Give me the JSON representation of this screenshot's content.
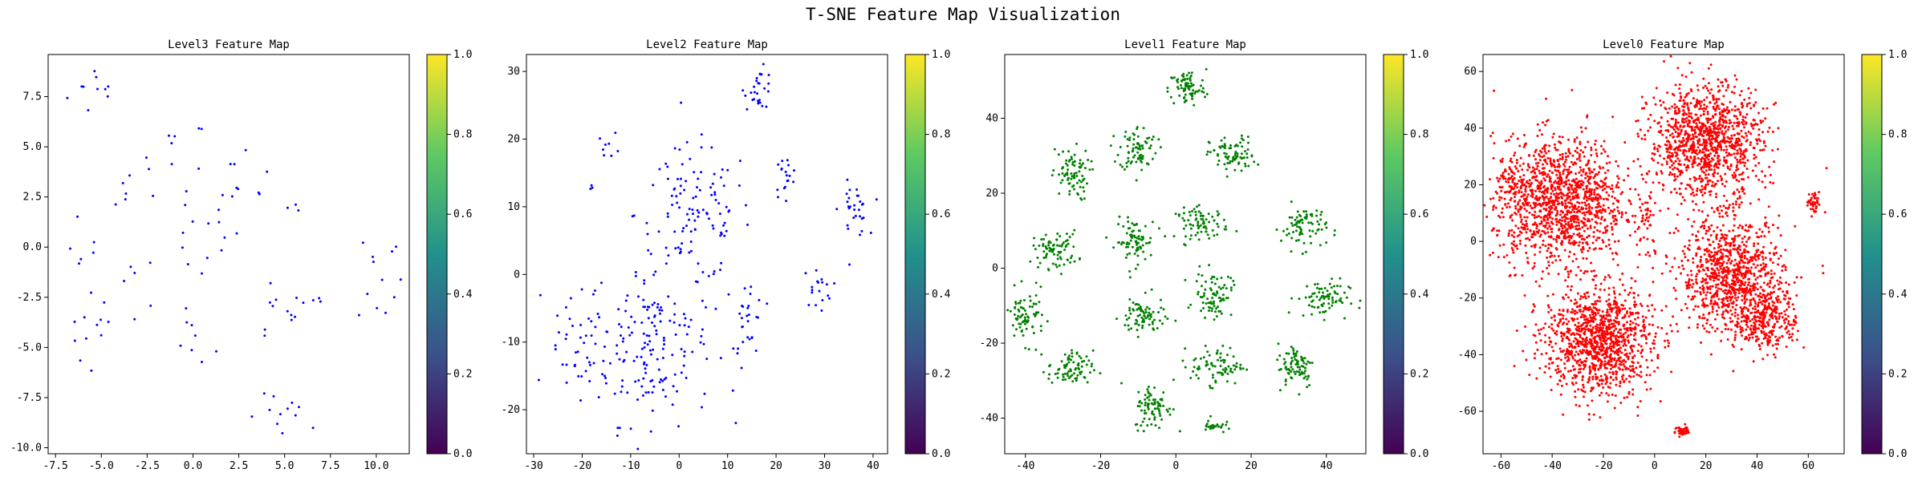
{
  "figure": {
    "title": "T-SNE Feature Map Visualization"
  },
  "colorbar": {
    "ticks": [
      "0.0",
      "0.2",
      "0.4",
      "0.6",
      "0.8",
      "1.0"
    ],
    "range": [
      0,
      1
    ],
    "colormap": [
      "#440154",
      "#3b528b",
      "#21918c",
      "#5ec962",
      "#fde725"
    ]
  },
  "chart_data": [
    {
      "type": "scatter",
      "title": "Level3 Feature Map",
      "color": "#0000ff",
      "xlim": [
        -7.9,
        11.8
      ],
      "ylim": [
        -10.3,
        9.6
      ],
      "xticks": [
        -7.5,
        -5.0,
        -2.5,
        0.0,
        2.5,
        5.0,
        7.5,
        10.0
      ],
      "xtick_labels": [
        "-7.5",
        "-5.0",
        "-2.5",
        "0.0",
        "2.5",
        "5.0",
        "7.5",
        "10.0"
      ],
      "yticks": [
        -10.0,
        -7.5,
        -5.0,
        -2.5,
        0.0,
        2.5,
        5.0,
        7.5
      ],
      "ytick_labels": [
        "-10.0",
        "-7.5",
        "-5.0",
        "-2.5",
        "0.0",
        "2.5",
        "5.0",
        "7.5"
      ],
      "clusters": [
        {
          "cx": -5.0,
          "cy": 7.8,
          "sx": 0.9,
          "sy": 0.7,
          "n": 10
        },
        {
          "cx": -4.2,
          "cy": 2.8,
          "sx": 0.6,
          "sy": 0.6,
          "n": 5
        },
        {
          "cx": -3.0,
          "cy": -1.5,
          "sx": 0.6,
          "sy": 0.8,
          "n": 6
        },
        {
          "cx": -5.3,
          "cy": -4.3,
          "sx": 0.7,
          "sy": 1.0,
          "n": 12
        },
        {
          "cx": -5.7,
          "cy": 0.0,
          "sx": 0.5,
          "sy": 1.0,
          "n": 6
        },
        {
          "cx": -1.0,
          "cy": 4.6,
          "sx": 0.9,
          "sy": 0.9,
          "n": 10
        },
        {
          "cx": 0.5,
          "cy": 0.8,
          "sx": 1.3,
          "sy": 1.4,
          "n": 16
        },
        {
          "cx": 2.8,
          "cy": 3.5,
          "sx": 0.7,
          "sy": 0.8,
          "n": 7
        },
        {
          "cx": 0.0,
          "cy": -4.8,
          "sx": 0.6,
          "sy": 0.7,
          "n": 8
        },
        {
          "cx": 4.3,
          "cy": -3.3,
          "sx": 0.9,
          "sy": 0.9,
          "n": 10
        },
        {
          "cx": 5.3,
          "cy": -8.6,
          "sx": 1.2,
          "sy": 0.6,
          "n": 12
        },
        {
          "cx": 10.2,
          "cy": -1.3,
          "sx": 0.6,
          "sy": 1.4,
          "n": 12
        },
        {
          "cx": 6.5,
          "cy": -2.5,
          "sx": 0.6,
          "sy": 0.7,
          "n": 5
        },
        {
          "cx": 5.0,
          "cy": 2.0,
          "sx": 0.6,
          "sy": 0.6,
          "n": 4
        }
      ]
    },
    {
      "type": "scatter",
      "title": "Level2 Feature Map",
      "color": "#0000ff",
      "xlim": [
        -31.5,
        43.0
      ],
      "ylim": [
        -26.5,
        32.5
      ],
      "xticks": [
        -30,
        -20,
        -10,
        0,
        10,
        20,
        30,
        40
      ],
      "xtick_labels": [
        "-30",
        "-20",
        "-10",
        "0",
        "10",
        "20",
        "30",
        "40"
      ],
      "yticks": [
        -20,
        -10,
        0,
        10,
        20,
        30
      ],
      "ytick_labels": [
        "-20",
        "-10",
        "0",
        "10",
        "20",
        "30"
      ],
      "clusters": [
        {
          "cx": -6.0,
          "cy": -10.0,
          "sx": 6.5,
          "sy": 6.0,
          "n": 170
        },
        {
          "cx": 3.0,
          "cy": 9.0,
          "sx": 6.0,
          "sy": 5.0,
          "n": 110
        },
        {
          "cx": -21.0,
          "cy": -12.0,
          "sx": 3.0,
          "sy": 4.0,
          "n": 35
        },
        {
          "cx": 14.5,
          "cy": -7.0,
          "sx": 1.5,
          "sy": 4.0,
          "n": 28
        },
        {
          "cx": -14.5,
          "cy": 19.0,
          "sx": 1.2,
          "sy": 1.0,
          "n": 8
        },
        {
          "cx": 16.5,
          "cy": 27.5,
          "sx": 1.5,
          "sy": 1.5,
          "n": 28
        },
        {
          "cx": 22.0,
          "cy": 14.5,
          "sx": 1.2,
          "sy": 1.5,
          "n": 18
        },
        {
          "cx": 36.0,
          "cy": 9.5,
          "sx": 1.5,
          "sy": 2.0,
          "n": 30
        },
        {
          "cx": 28.5,
          "cy": -2.0,
          "sx": 1.5,
          "sy": 1.5,
          "n": 18
        },
        {
          "cx": -18.0,
          "cy": 13.0,
          "sx": 0.3,
          "sy": 0.3,
          "n": 3
        }
      ]
    },
    {
      "type": "scatter",
      "title": "Level1 Feature Map",
      "color": "#008000",
      "xlim": [
        -45.5,
        50.5
      ],
      "ylim": [
        -49.5,
        57.0
      ],
      "xticks": [
        -40,
        -20,
        0,
        20,
        40
      ],
      "xtick_labels": [
        "-40",
        "-20",
        "0",
        "20",
        "40"
      ],
      "yticks": [
        -40,
        -20,
        0,
        20,
        40
      ],
      "ytick_labels": [
        "-40",
        "-20",
        "0",
        "20",
        "40"
      ],
      "clusters": [
        {
          "cx": 3.0,
          "cy": 48.0,
          "sx": 2.5,
          "sy": 2.5,
          "n": 80
        },
        {
          "cx": -10.0,
          "cy": 32.0,
          "sx": 2.5,
          "sy": 3.0,
          "n": 80
        },
        {
          "cx": -28.0,
          "cy": 25.0,
          "sx": 2.5,
          "sy": 3.5,
          "n": 80
        },
        {
          "cx": 15.0,
          "cy": 30.0,
          "sx": 3.0,
          "sy": 2.5,
          "n": 80
        },
        {
          "cx": -32.0,
          "cy": 5.0,
          "sx": 3.0,
          "sy": 2.5,
          "n": 80
        },
        {
          "cx": -11.0,
          "cy": 7.0,
          "sx": 2.5,
          "sy": 3.0,
          "n": 80
        },
        {
          "cx": 7.0,
          "cy": 12.0,
          "sx": 3.5,
          "sy": 2.0,
          "n": 80
        },
        {
          "cx": 34.0,
          "cy": 11.0,
          "sx": 3.0,
          "sy": 3.0,
          "n": 80
        },
        {
          "cx": -40.0,
          "cy": -13.0,
          "sx": 2.5,
          "sy": 3.5,
          "n": 80
        },
        {
          "cx": -9.0,
          "cy": -13.0,
          "sx": 3.0,
          "sy": 2.5,
          "n": 80
        },
        {
          "cx": 10.0,
          "cy": -7.0,
          "sx": 2.5,
          "sy": 3.0,
          "n": 80
        },
        {
          "cx": 39.0,
          "cy": -8.0,
          "sx": 3.5,
          "sy": 2.5,
          "n": 80
        },
        {
          "cx": -28.0,
          "cy": -27.0,
          "sx": 3.0,
          "sy": 2.5,
          "n": 80
        },
        {
          "cx": 11.0,
          "cy": -26.0,
          "sx": 3.5,
          "sy": 2.5,
          "n": 80
        },
        {
          "cx": 32.0,
          "cy": -26.0,
          "sx": 2.5,
          "sy": 3.0,
          "n": 80
        },
        {
          "cx": -6.0,
          "cy": -37.0,
          "sx": 2.5,
          "sy": 3.0,
          "n": 80
        },
        {
          "cx": 10.0,
          "cy": -42.0,
          "sx": 1.5,
          "sy": 1.0,
          "n": 25
        }
      ]
    },
    {
      "type": "scatter",
      "title": "Level0 Feature Map",
      "color": "#ff0000",
      "xlim": [
        -67.0,
        74.0
      ],
      "ylim": [
        -75.0,
        66.0
      ],
      "xticks": [
        -60,
        -40,
        -20,
        0,
        20,
        40,
        60
      ],
      "xtick_labels": [
        "-60",
        "-40",
        "-20",
        "0",
        "20",
        "40",
        "60"
      ],
      "yticks": [
        -60,
        -40,
        -20,
        0,
        20,
        40,
        60
      ],
      "ytick_labels": [
        "-60",
        "-40",
        "-20",
        "0",
        "20",
        "40",
        "60"
      ],
      "clusters": [
        {
          "cx": -37.0,
          "cy": 14.0,
          "sx": 13.0,
          "sy": 11.0,
          "n": 1300
        },
        {
          "cx": 20.0,
          "cy": 35.0,
          "sx": 11.0,
          "sy": 10.0,
          "n": 1100
        },
        {
          "cx": 30.0,
          "cy": -12.0,
          "sx": 10.0,
          "sy": 10.0,
          "n": 900
        },
        {
          "cx": -22.0,
          "cy": -35.0,
          "sx": 10.5,
          "sy": 9.5,
          "n": 1100
        },
        {
          "cx": 44.0,
          "cy": -27.0,
          "sx": 6.0,
          "sy": 6.0,
          "n": 300
        },
        {
          "cx": -55.0,
          "cy": 21.0,
          "sx": 2.5,
          "sy": 2.0,
          "n": 40
        },
        {
          "cx": 62.0,
          "cy": 13.0,
          "sx": 1.5,
          "sy": 2.0,
          "n": 40
        },
        {
          "cx": 11.0,
          "cy": -67.0,
          "sx": 1.5,
          "sy": 1.0,
          "n": 40
        },
        {
          "cx": -3.0,
          "cy": 5.0,
          "sx": 1.5,
          "sy": 8.0,
          "n": 30
        }
      ]
    }
  ]
}
